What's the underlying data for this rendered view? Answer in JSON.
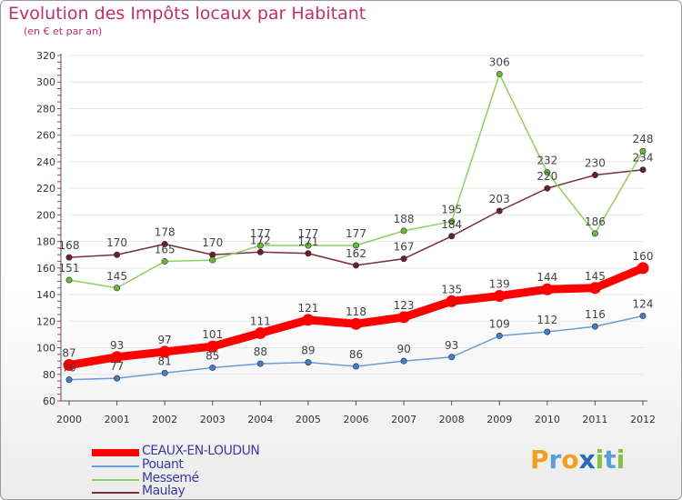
{
  "header": {
    "title": "Evolution des Impôts locaux par Habitant",
    "subtitle": "(en € et par an)"
  },
  "logo": {
    "text": "Proxiti",
    "letters": [
      "P",
      "r",
      "o",
      "x",
      "i",
      "t",
      "i"
    ],
    "colors": [
      "#f0a020",
      "#5aa0d8",
      "#f0a020",
      "#2a6ab0",
      "#8ac040",
      "#5aa0d8",
      "#8ac040"
    ]
  },
  "legend": [
    {
      "name": "CEAUX-EN-LOUDUN",
      "color": "#ff0000",
      "width": 8
    },
    {
      "name": "Pouant",
      "color": "#6a9ed6",
      "width": 2
    },
    {
      "name": "Messemé",
      "color": "#8ed060",
      "width": 2
    },
    {
      "name": "Maulay",
      "color": "#7a2d3a",
      "width": 2
    }
  ],
  "chart_data": {
    "type": "line",
    "title": "Evolution des Impôts locaux par Habitant",
    "subtitle": "(en € et par an)",
    "x": [
      2000,
      2001,
      2002,
      2003,
      2004,
      2005,
      2006,
      2007,
      2008,
      2009,
      2010,
      2011,
      2012
    ],
    "ylim": [
      60,
      320
    ],
    "yticks": [
      60,
      80,
      100,
      120,
      140,
      160,
      180,
      200,
      220,
      240,
      260,
      280,
      300,
      320
    ],
    "grid": "horizontal",
    "legend_position": "bottom-left",
    "series": [
      {
        "name": "CEAUX-EN-LOUDUN",
        "color": "#ff0000",
        "point_color": "#ff0000",
        "values": [
          87,
          93,
          97,
          101,
          111,
          121,
          118,
          123,
          135,
          139,
          144,
          145,
          160
        ]
      },
      {
        "name": "Pouant",
        "color": "#6a9ed6",
        "point_color": "#3f7fc8",
        "values": [
          76,
          77,
          81,
          85,
          88,
          89,
          86,
          90,
          93,
          109,
          112,
          116,
          124
        ]
      },
      {
        "name": "Messemé",
        "color": "#8ed060",
        "point_color": "#6ab83a",
        "values": [
          151,
          145,
          165,
          166,
          177,
          177,
          177,
          188,
          195,
          306,
          232,
          186,
          248
        ]
      },
      {
        "name": "Maulay",
        "color": "#7a2d3a",
        "point_color": "#6a1d2a",
        "values": [
          168,
          170,
          178,
          170,
          172,
          171,
          162,
          167,
          184,
          203,
          220,
          230,
          234
        ]
      }
    ],
    "data_labels": [
      {
        "series": "CEAUX-EN-LOUDUN",
        "labels": [
          "87",
          "93",
          "97",
          "101",
          "111",
          "121",
          "118",
          "123",
          "135",
          "139",
          "144",
          "145",
          "160"
        ]
      },
      {
        "series": "Pouant",
        "labels": [
          "76",
          "77",
          "81",
          "85",
          "88",
          "89",
          "86",
          "90",
          "93",
          "109",
          "112",
          "116",
          "124"
        ]
      },
      {
        "series": "Messemé",
        "labels": [
          "151",
          "145",
          "165",
          "",
          "177",
          "177",
          "177",
          "188",
          "195",
          "306",
          "232",
          "186",
          "248"
        ]
      },
      {
        "series": "Maulay",
        "labels": [
          "168",
          "170",
          "178",
          "170",
          "172",
          "171",
          "162",
          "167",
          "184",
          "203",
          "220",
          "230",
          "234"
        ]
      }
    ]
  }
}
